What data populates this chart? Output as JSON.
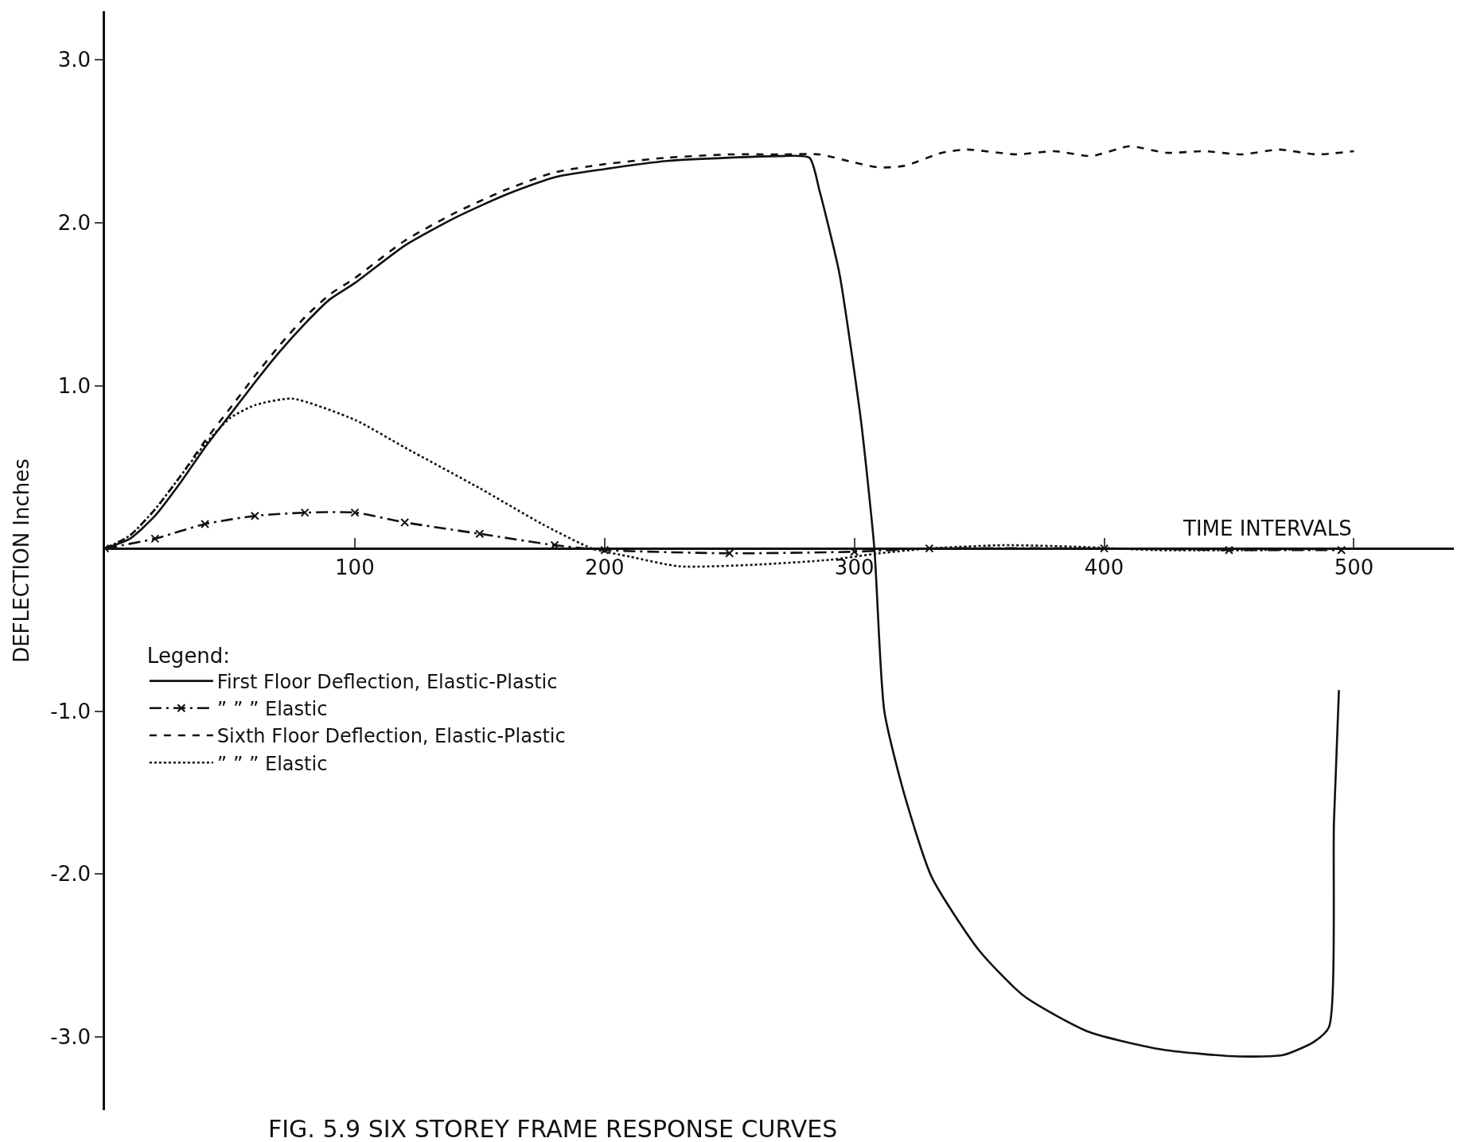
{
  "chart_data": {
    "type": "line",
    "xlabel": "TIME INTERVALS",
    "ylabel": "DEFLECTION Inches",
    "legend_title": "Legend:",
    "xlim": [
      0,
      540
    ],
    "ylim": [
      -3.45,
      3.3
    ],
    "xticks": [
      100,
      200,
      300,
      400,
      500
    ],
    "yticks": [
      {
        "value": 3,
        "label": "3.0"
      },
      {
        "value": 2,
        "label": "2.0"
      },
      {
        "value": 1,
        "label": "1.0"
      },
      {
        "value": -1,
        "label": "-1.0"
      },
      {
        "value": -2,
        "label": "-2.0"
      },
      {
        "value": -3,
        "label": "-3.0"
      }
    ],
    "legend": "bottom left",
    "annotations": [
      "FIG. 5.9 SIX STOREY FRAME RESPONSE CURVES"
    ],
    "series": [
      {
        "name": "First Floor Deflection, Elastic-Plastic",
        "color": "#111111",
        "line_style": "solid",
        "x": [
          0,
          10,
          20,
          30,
          40,
          50,
          60,
          70,
          80,
          90,
          100,
          120,
          140,
          160,
          180,
          200,
          225,
          250,
          270,
          282,
          286,
          294,
          299,
          303,
          308,
          312,
          320,
          331,
          350,
          368,
          394,
          424,
          454,
          472,
          484,
          490,
          492,
          494
        ],
        "values": [
          0,
          0.06,
          0.2,
          0.4,
          0.62,
          0.82,
          1.02,
          1.21,
          1.38,
          1.53,
          1.63,
          1.86,
          2.03,
          2.17,
          2.28,
          2.33,
          2.38,
          2.4,
          2.41,
          2.4,
          2.2,
          1.69,
          1.19,
          0.74,
          0,
          -1.0,
          -1.51,
          -2.02,
          -2.47,
          -2.75,
          -2.97,
          -3.08,
          -3.12,
          -3.11,
          -3.03,
          -2.94,
          -1.68,
          -0.87
        ]
      },
      {
        "name": "” ” ” Elastic",
        "color": "#111111",
        "line_style": "dashdot",
        "marker": "cross",
        "x": [
          0,
          20,
          40,
          60,
          80,
          100,
          120,
          150,
          180,
          200,
          250,
          300,
          330,
          400,
          450,
          495
        ],
        "values": [
          0,
          0.06,
          0.15,
          0.2,
          0.22,
          0.22,
          0.16,
          0.09,
          0.02,
          -0.01,
          -0.03,
          -0.02,
          0,
          0,
          -0.01,
          -0.01
        ]
      },
      {
        "name": "Sixth Floor Deflection, Elastic-Plastic",
        "color": "#111111",
        "line_style": "dashed",
        "x": [
          0,
          10,
          20,
          30,
          40,
          50,
          60,
          70,
          80,
          90,
          100,
          120,
          140,
          160,
          180,
          200,
          225,
          250,
          270,
          286,
          300,
          310,
          320,
          335,
          345,
          365,
          380,
          395,
          410,
          425,
          440,
          455,
          470,
          485,
          500
        ],
        "values": [
          0,
          0.08,
          0.24,
          0.44,
          0.66,
          0.86,
          1.06,
          1.25,
          1.42,
          1.56,
          1.66,
          1.89,
          2.06,
          2.2,
          2.31,
          2.36,
          2.4,
          2.42,
          2.42,
          2.42,
          2.37,
          2.34,
          2.35,
          2.43,
          2.45,
          2.42,
          2.44,
          2.41,
          2.47,
          2.43,
          2.44,
          2.42,
          2.45,
          2.42,
          2.44
        ]
      },
      {
        "name": "” ” ” Elastic",
        "color": "#111111",
        "line_style": "dotted",
        "x": [
          0,
          10,
          20,
          30,
          40,
          50,
          60,
          75,
          100,
          120,
          150,
          175,
          195,
          210,
          230,
          260,
          290,
          310,
          330,
          360,
          390,
          420,
          460,
          500
        ],
        "values": [
          0,
          0.08,
          0.24,
          0.44,
          0.64,
          0.8,
          0.88,
          0.92,
          0.79,
          0.62,
          0.37,
          0.15,
          0.0,
          -0.05,
          -0.11,
          -0.1,
          -0.07,
          -0.03,
          0,
          0.02,
          0.01,
          -0.01,
          -0.01,
          0
        ]
      }
    ]
  }
}
